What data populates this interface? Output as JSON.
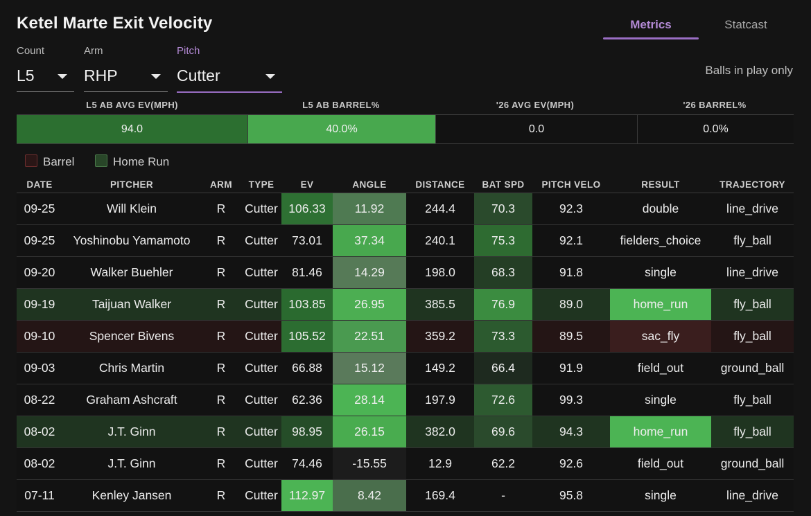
{
  "title": "Ketel Marte Exit Velocity",
  "tabs": [
    {
      "label": "Metrics",
      "active": true
    },
    {
      "label": "Statcast",
      "active": false
    }
  ],
  "filters": {
    "count": {
      "label": "Count",
      "value": "L5"
    },
    "arm": {
      "label": "Arm",
      "value": "RHP"
    },
    "pitch": {
      "label": "Pitch",
      "value": "Cutter"
    }
  },
  "balls_in_play_label": "Balls in play only",
  "summary": {
    "headers": [
      "L5 AB AVG EV(MPH)",
      "L5 AB BARREL%",
      "'26 AVG EV(MPH)",
      "'26 BARREL%"
    ],
    "values": [
      "94.0",
      "40.0%",
      "0.0",
      "0.0%"
    ],
    "colors": [
      "#2c6f30",
      "#48a84e",
      "#121212",
      "#121212"
    ]
  },
  "legend": [
    {
      "label": "Barrel",
      "color": "#2a1616"
    },
    {
      "label": "Home Run",
      "color": "#284628"
    }
  ],
  "table": {
    "columns": [
      "DATE",
      "PITCHER",
      "ARM",
      "TYPE",
      "EV",
      "ANGLE",
      "DISTANCE",
      "BAT SPD",
      "PITCH VELO",
      "RESULT",
      "TRAJECTORY"
    ],
    "rows": [
      {
        "type": "plain",
        "cells": [
          "09-25",
          "Will Klein",
          "R",
          "Cutter",
          "106.33",
          "11.92",
          "244.4",
          "70.3",
          "92.3",
          "double",
          "line_drive"
        ],
        "colors": {
          "ev": "#2e7033",
          "angle": "#4f7a52",
          "bat": "#2a4a2c",
          "result": ""
        }
      },
      {
        "type": "plain",
        "cells": [
          "09-25",
          "Yoshinobu Yamamoto",
          "R",
          "Cutter",
          "73.01",
          "37.34",
          "240.1",
          "75.3",
          "92.1",
          "fielders_choice",
          "fly_ball"
        ],
        "colors": {
          "ev": "",
          "angle": "#48a84e",
          "bat": "#2e6b31",
          "result": ""
        }
      },
      {
        "type": "plain",
        "cells": [
          "09-20",
          "Walker Buehler",
          "R",
          "Cutter",
          "81.46",
          "14.29",
          "198.0",
          "68.3",
          "91.8",
          "single",
          "line_drive"
        ],
        "colors": {
          "ev": "",
          "angle": "#567a57",
          "bat": "#243e25",
          "result": ""
        }
      },
      {
        "type": "hr",
        "cells": [
          "09-19",
          "Taijuan Walker",
          "R",
          "Cutter",
          "103.85",
          "26.95",
          "385.5",
          "76.9",
          "89.0",
          "home_run",
          "fly_ball"
        ],
        "colors": {
          "ev": "#2a6a2f",
          "angle": "#4cae52",
          "bat": "#3b8c40",
          "result": "#4cb454"
        }
      },
      {
        "type": "barrel",
        "cells": [
          "09-10",
          "Spencer Bivens",
          "R",
          "Cutter",
          "105.52",
          "22.51",
          "359.2",
          "73.3",
          "89.5",
          "sac_fly",
          "fly_ball"
        ],
        "colors": {
          "ev": "#2c6d31",
          "angle": "#4a9a50",
          "bat": "#2c5a2f",
          "result": "#3a1e1e"
        }
      },
      {
        "type": "plain",
        "cells": [
          "09-03",
          "Chris Martin",
          "R",
          "Cutter",
          "66.88",
          "15.12",
          "149.2",
          "66.4",
          "91.9",
          "field_out",
          "ground_ball"
        ],
        "colors": {
          "ev": "",
          "angle": "#5a7a5b",
          "bat": "#1e2a1f",
          "result": ""
        }
      },
      {
        "type": "plain",
        "cells": [
          "08-22",
          "Graham Ashcraft",
          "R",
          "Cutter",
          "62.36",
          "28.14",
          "197.9",
          "72.6",
          "99.3",
          "single",
          "fly_ball"
        ],
        "colors": {
          "ev": "",
          "angle": "#4cb454",
          "bat": "#2d5a30",
          "result": ""
        }
      },
      {
        "type": "hr",
        "cells": [
          "08-02",
          "J.T. Ginn",
          "R",
          "Cutter",
          "98.95",
          "26.15",
          "382.0",
          "69.6",
          "94.3",
          "home_run",
          "fly_ball"
        ],
        "colors": {
          "ev": "#254d28",
          "angle": "#49ac4f",
          "bat": "#2a4a2c",
          "result": "#4cb454"
        }
      },
      {
        "type": "plain",
        "cells": [
          "08-02",
          "J.T. Ginn",
          "R",
          "Cutter",
          "74.46",
          "-15.55",
          "12.9",
          "62.2",
          "92.6",
          "field_out",
          "ground_ball"
        ],
        "colors": {
          "ev": "",
          "angle": "#1c1c1c",
          "bat": "",
          "result": ""
        }
      },
      {
        "type": "plain",
        "cells": [
          "07-11",
          "Kenley Jansen",
          "R",
          "Cutter",
          "112.97",
          "8.42",
          "169.4",
          "-",
          "95.8",
          "single",
          "line_drive"
        ],
        "colors": {
          "ev": "#4cb454",
          "angle": "#4a6e4c",
          "bat": "",
          "result": ""
        }
      }
    ]
  }
}
